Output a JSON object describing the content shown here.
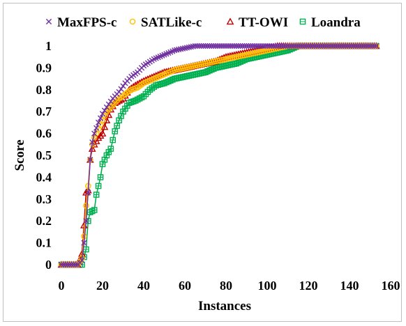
{
  "chart_data": {
    "type": "line",
    "title": "",
    "xlabel": "Instances",
    "ylabel": "Score",
    "xlim": [
      0,
      160
    ],
    "ylim": [
      0,
      1
    ],
    "x_ticks": [
      "0",
      "20",
      "40",
      "60",
      "80",
      "100",
      "120",
      "140",
      "160"
    ],
    "y_ticks": [
      "0",
      "0.1",
      "0.2",
      "0.3",
      "0.4",
      "0.5",
      "0.6",
      "0.7",
      "0.8",
      "0.9",
      "1"
    ],
    "grid": false,
    "legend_position": "top",
    "series": [
      {
        "name": "MaxFPS-c",
        "color": "#7030a0",
        "marker": "x",
        "points": [
          [
            0,
            0
          ],
          [
            4,
            0
          ],
          [
            8,
            0
          ],
          [
            10,
            0.02
          ],
          [
            11,
            0.1
          ],
          [
            12,
            0.2
          ],
          [
            13,
            0.33
          ],
          [
            14,
            0.48
          ],
          [
            15,
            0.56
          ],
          [
            16,
            0.6
          ],
          [
            18,
            0.65
          ],
          [
            20,
            0.69
          ],
          [
            22,
            0.72
          ],
          [
            25,
            0.76
          ],
          [
            28,
            0.79
          ],
          [
            31,
            0.83
          ],
          [
            34,
            0.86
          ],
          [
            37,
            0.88
          ],
          [
            40,
            0.91
          ],
          [
            45,
            0.94
          ],
          [
            50,
            0.96
          ],
          [
            55,
            0.98
          ],
          [
            60,
            0.99
          ],
          [
            65,
            1.0
          ],
          [
            70,
            1.0
          ],
          [
            80,
            1.0
          ],
          [
            90,
            1.0
          ],
          [
            100,
            1.0
          ],
          [
            110,
            1.0
          ],
          [
            120,
            1.0
          ],
          [
            130,
            1.0
          ],
          [
            140,
            1.0
          ],
          [
            150,
            1.0
          ],
          [
            153,
            1.0
          ]
        ]
      },
      {
        "name": "SATLike-c",
        "color": "#ffc000",
        "marker": "o",
        "points": [
          [
            0,
            0
          ],
          [
            4,
            0
          ],
          [
            8,
            0
          ],
          [
            10,
            0.03
          ],
          [
            11,
            0.13
          ],
          [
            12,
            0.27
          ],
          [
            13,
            0.36
          ],
          [
            14,
            0.48
          ],
          [
            15,
            0.55
          ],
          [
            16,
            0.58
          ],
          [
            18,
            0.62
          ],
          [
            20,
            0.66
          ],
          [
            22,
            0.7
          ],
          [
            25,
            0.73
          ],
          [
            28,
            0.76
          ],
          [
            31,
            0.78
          ],
          [
            34,
            0.8
          ],
          [
            37,
            0.81
          ],
          [
            40,
            0.83
          ],
          [
            45,
            0.85
          ],
          [
            50,
            0.87
          ],
          [
            55,
            0.89
          ],
          [
            60,
            0.9
          ],
          [
            65,
            0.91
          ],
          [
            70,
            0.92
          ],
          [
            75,
            0.93
          ],
          [
            80,
            0.94
          ],
          [
            85,
            0.95
          ],
          [
            90,
            0.96
          ],
          [
            95,
            0.97
          ],
          [
            100,
            0.98
          ],
          [
            105,
            0.99
          ],
          [
            110,
            1.0
          ],
          [
            120,
            1.0
          ],
          [
            130,
            1.0
          ],
          [
            140,
            1.0
          ],
          [
            150,
            1.0
          ],
          [
            153,
            1.0
          ]
        ]
      },
      {
        "name": "TT-OWI",
        "color": "#c00000",
        "marker": "triangle",
        "points": [
          [
            0,
            0
          ],
          [
            4,
            0
          ],
          [
            8,
            0
          ],
          [
            10,
            0.05
          ],
          [
            11,
            0.18
          ],
          [
            12,
            0.33
          ],
          [
            13,
            0.34
          ],
          [
            14,
            0.48
          ],
          [
            15,
            0.53
          ],
          [
            16,
            0.55
          ],
          [
            18,
            0.58
          ],
          [
            20,
            0.6
          ],
          [
            22,
            0.66
          ],
          [
            24,
            0.71
          ],
          [
            26,
            0.74
          ],
          [
            28,
            0.75
          ],
          [
            30,
            0.76
          ],
          [
            33,
            0.8
          ],
          [
            36,
            0.82
          ],
          [
            40,
            0.84
          ],
          [
            45,
            0.86
          ],
          [
            50,
            0.88
          ],
          [
            55,
            0.89
          ],
          [
            60,
            0.9
          ],
          [
            65,
            0.91
          ],
          [
            70,
            0.92
          ],
          [
            75,
            0.93
          ],
          [
            80,
            0.95
          ],
          [
            85,
            0.96
          ],
          [
            90,
            0.97
          ],
          [
            95,
            0.98
          ],
          [
            100,
            0.99
          ],
          [
            105,
            1.0
          ],
          [
            110,
            1.0
          ],
          [
            120,
            1.0
          ],
          [
            130,
            1.0
          ],
          [
            140,
            1.0
          ],
          [
            150,
            1.0
          ],
          [
            153,
            1.0
          ]
        ]
      },
      {
        "name": "Loandra",
        "color": "#00b050",
        "marker": "square",
        "points": [
          [
            0,
            0
          ],
          [
            4,
            0
          ],
          [
            8,
            0
          ],
          [
            10,
            0.0
          ],
          [
            12,
            0.07
          ],
          [
            13,
            0.2
          ],
          [
            14,
            0.24
          ],
          [
            16,
            0.25
          ],
          [
            17,
            0.32
          ],
          [
            19,
            0.4
          ],
          [
            20,
            0.46
          ],
          [
            22,
            0.5
          ],
          [
            24,
            0.53
          ],
          [
            26,
            0.61
          ],
          [
            28,
            0.66
          ],
          [
            30,
            0.7
          ],
          [
            33,
            0.74
          ],
          [
            36,
            0.75
          ],
          [
            40,
            0.77
          ],
          [
            43,
            0.8
          ],
          [
            46,
            0.82
          ],
          [
            50,
            0.83
          ],
          [
            55,
            0.85
          ],
          [
            60,
            0.86
          ],
          [
            65,
            0.87
          ],
          [
            70,
            0.88
          ],
          [
            75,
            0.9
          ],
          [
            80,
            0.91
          ],
          [
            85,
            0.92
          ],
          [
            90,
            0.94
          ],
          [
            95,
            0.95
          ],
          [
            100,
            0.96
          ],
          [
            105,
            0.97
          ],
          [
            110,
            0.98
          ],
          [
            115,
            1.0
          ],
          [
            120,
            1.0
          ],
          [
            130,
            1.0
          ],
          [
            140,
            1.0
          ],
          [
            150,
            1.0
          ],
          [
            153,
            1.0
          ]
        ]
      }
    ]
  }
}
